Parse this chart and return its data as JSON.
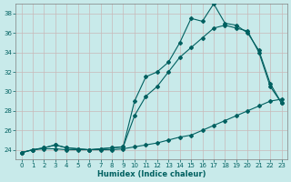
{
  "xlabel": "Humidex (Indice chaleur)",
  "bg_color": "#c8eaea",
  "grid_color": "#d0e8e8",
  "line_color": "#006060",
  "xlim": [
    -0.5,
    23.5
  ],
  "ylim": [
    23,
    39
  ],
  "xticks": [
    0,
    1,
    2,
    3,
    4,
    5,
    6,
    7,
    8,
    9,
    10,
    11,
    12,
    13,
    14,
    15,
    16,
    17,
    18,
    19,
    20,
    21,
    22,
    23
  ],
  "yticks": [
    24,
    26,
    28,
    30,
    32,
    34,
    36,
    38
  ],
  "x": [
    0,
    1,
    2,
    3,
    4,
    5,
    6,
    7,
    8,
    9,
    10,
    11,
    12,
    13,
    14,
    15,
    16,
    17,
    18,
    19,
    20,
    21,
    22,
    23
  ],
  "line1": [
    23.7,
    24.0,
    24.2,
    24.5,
    24.2,
    24.1,
    24.0,
    24.1,
    24.2,
    24.3,
    27.5,
    29.5,
    30.5,
    32.0,
    33.5,
    34.5,
    35.5,
    36.5,
    36.8,
    36.5,
    36.2,
    34.0,
    30.5,
    28.8
  ],
  "line2": [
    23.7,
    24.0,
    24.2,
    24.5,
    24.2,
    24.1,
    24.0,
    24.1,
    24.2,
    24.3,
    29.0,
    31.5,
    32.0,
    33.0,
    35.0,
    37.5,
    37.2,
    39.0,
    37.0,
    36.8,
    36.0,
    34.2,
    30.8,
    28.8
  ],
  "line3": [
    23.7,
    24.0,
    24.1,
    24.1,
    24.0,
    24.0,
    24.0,
    24.0,
    24.0,
    24.1,
    24.3,
    24.5,
    24.7,
    25.0,
    25.3,
    25.5,
    26.0,
    26.5,
    27.0,
    27.5,
    28.0,
    28.5,
    29.0,
    29.2
  ]
}
